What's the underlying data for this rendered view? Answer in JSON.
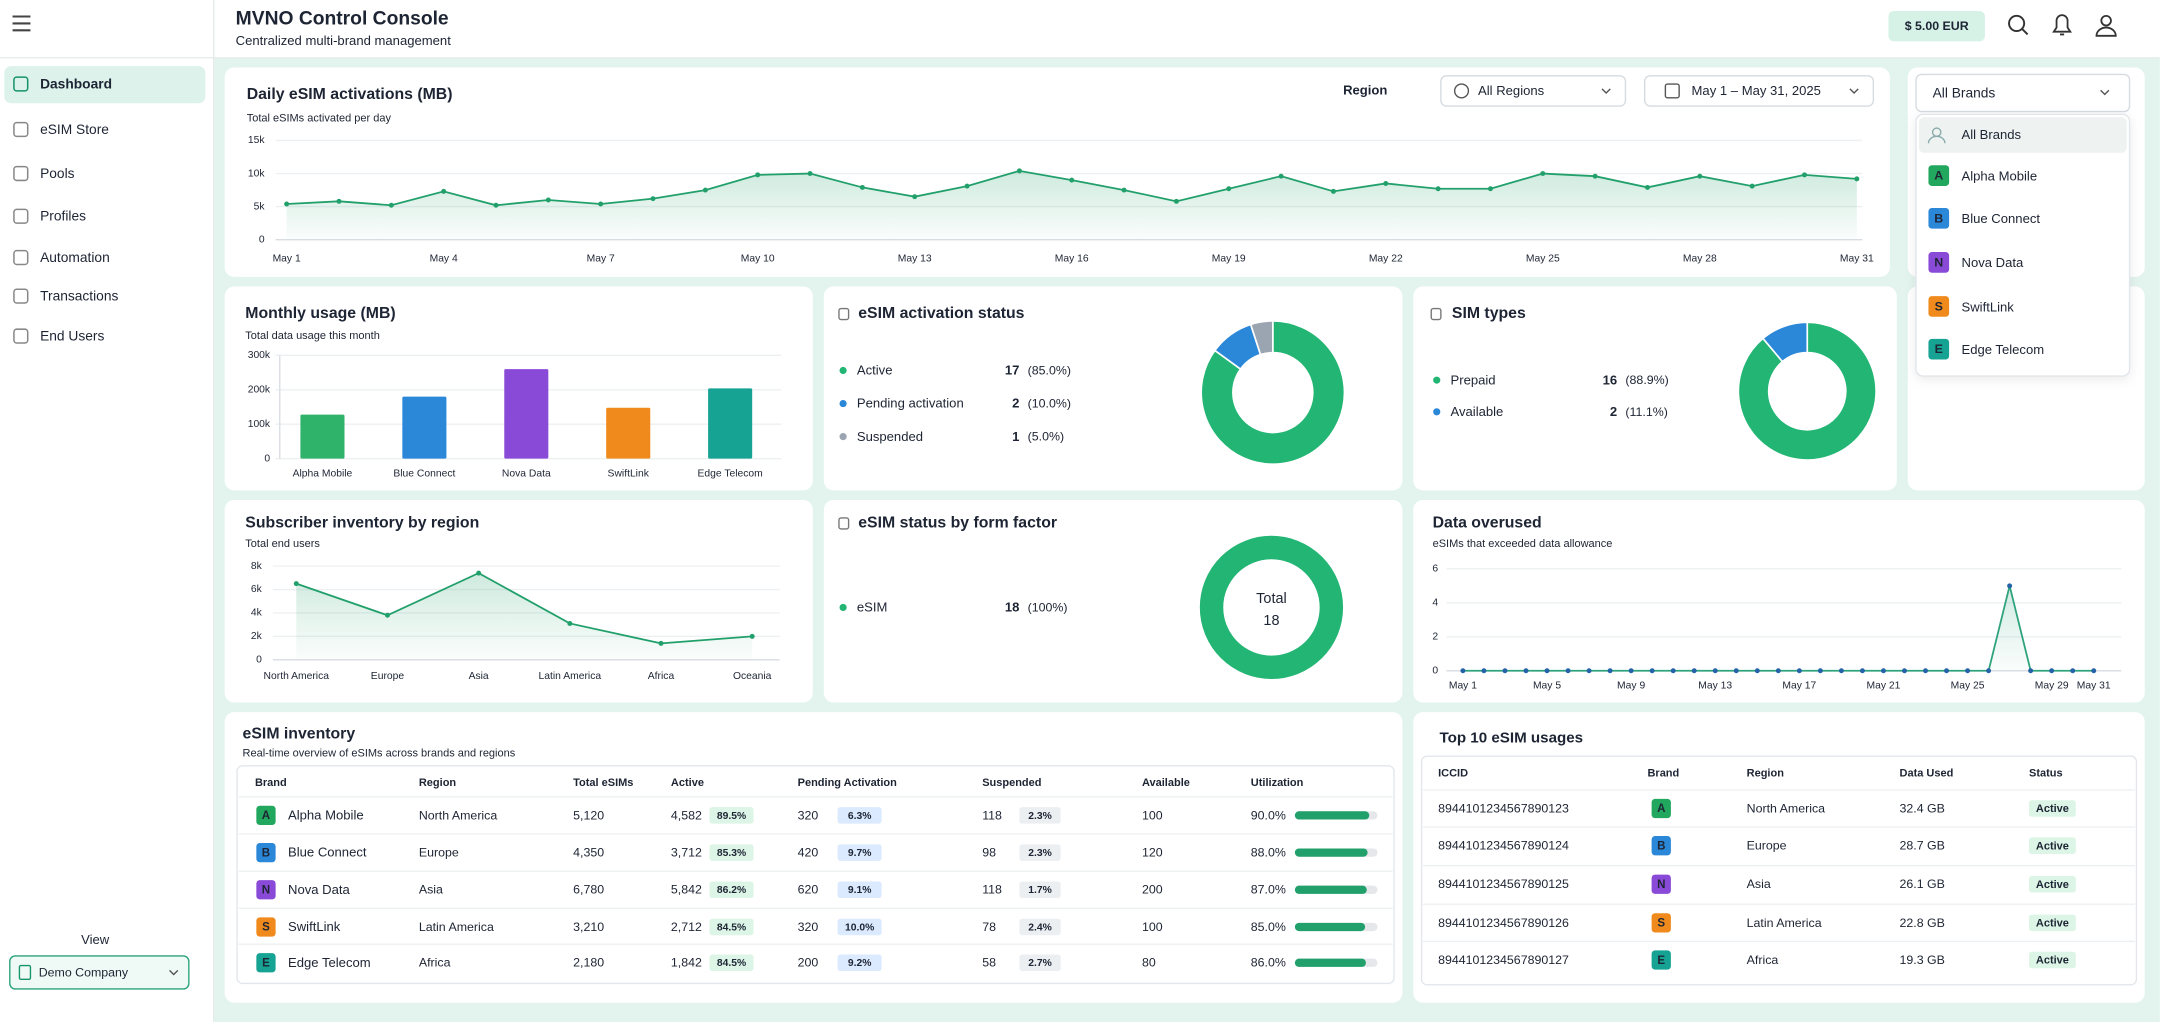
{
  "header": {
    "title": "MVNO Control Console",
    "subtitle": "Centralized multi-brand management",
    "balance": "$ 5.00 EUR"
  },
  "sidebar": {
    "items": [
      "Dashboard",
      "eSIM Store",
      "Pools",
      "Profiles",
      "Automation",
      "Transactions",
      "End Users"
    ],
    "active": 0,
    "view_label": "View",
    "view_value": "Demo Company"
  },
  "filters": {
    "region_label": "Region",
    "region_value": "All Regions",
    "date_range": "May 1 – May 31, 2025"
  },
  "brand_filter": {
    "value": "All Brands",
    "options": [
      {
        "name": "All Brands"
      },
      {
        "name": "Alpha Mobile",
        "initial": "A",
        "color": "#22a75e"
      },
      {
        "name": "Blue Connect",
        "initial": "B",
        "color": "#2b87d8"
      },
      {
        "name": "Nova Data",
        "initial": "N",
        "color": "#8a4ad8"
      },
      {
        "name": "SwiftLink",
        "initial": "S",
        "color": "#f08a1c"
      },
      {
        "name": "Edge Telecom",
        "initial": "E",
        "color": "#16a394"
      }
    ]
  },
  "chart_data": [
    {
      "type": "line",
      "title": "Daily eSIM activations (MB)",
      "subtitle": "Total eSIMs activated per day",
      "categories": [
        "May 1",
        null,
        null,
        "May 4",
        null,
        null,
        "May 7",
        null,
        null,
        "May 10",
        null,
        null,
        "May 13",
        null,
        null,
        "May 16",
        null,
        null,
        "May 19",
        null,
        null,
        "May 22",
        null,
        null,
        "May 25",
        null,
        null,
        "May 28",
        null,
        null,
        "May 31"
      ],
      "values": [
        5400,
        5800,
        5200,
        7300,
        5200,
        6000,
        5400,
        6200,
        7500,
        9800,
        10000,
        7900,
        6500,
        8100,
        10400,
        9000,
        7500,
        5800,
        7700,
        9600,
        7300,
        8500,
        7700,
        7700,
        10000,
        9600,
        7900,
        9600,
        8100,
        9800,
        9200
      ],
      "color": "#22a06b",
      "ylim": [
        0,
        15000
      ],
      "yticks": [
        0,
        {
          "value": 5000,
          "label": "5k"
        },
        {
          "value": 10000,
          "label": "10k"
        },
        {
          "value": 15000,
          "label": "15k"
        }
      ],
      "grid": true
    },
    {
      "type": "bar",
      "title": "Monthly usage (MB)",
      "subtitle": "Total data usage this month",
      "categories": [
        "Alpha Mobile",
        "Blue Connect",
        "Nova Data",
        "SwiftLink",
        "Edge Telecom"
      ],
      "values": [
        128000,
        180000,
        260000,
        148000,
        204000
      ],
      "colors": [
        "#2fb36b",
        "#2b87d8",
        "#8a4ad8",
        "#f08a1c",
        "#16a394"
      ],
      "ylim": [
        0,
        300000
      ],
      "yticks": [
        0,
        {
          "value": 100000,
          "label": "100k"
        },
        {
          "value": 200000,
          "label": "200k"
        },
        {
          "value": 300000,
          "label": "300k"
        }
      ],
      "grid": true
    },
    {
      "type": "pie",
      "title": "eSIM activation status",
      "categories": [
        "Active",
        "Pending activation",
        "Suspended"
      ],
      "values": [
        17,
        2,
        1
      ],
      "share_labels": [
        "(85.0%)",
        "(10.0%)",
        "(5.0%)"
      ],
      "colors": [
        "#22b573",
        "#2b87d8",
        "#9aa5b1"
      ]
    },
    {
      "type": "pie",
      "title": "SIM types",
      "categories": [
        "Prepaid",
        "Available"
      ],
      "values": [
        16,
        2
      ],
      "share_labels": [
        "(88.9%)",
        "(11.1%)"
      ],
      "colors": [
        "#22b573",
        "#2b87d8"
      ]
    },
    {
      "type": "line",
      "title": "Subscriber inventory by region",
      "subtitle": "Total end users",
      "categories": [
        "North America",
        "Europe",
        "Asia",
        "Latin America",
        "Africa",
        "Oceania"
      ],
      "values": [
        6500,
        3800,
        7400,
        3100,
        1400,
        2000
      ],
      "color": "#22a06b",
      "ylim": [
        0,
        8000
      ],
      "yticks": [
        0,
        {
          "value": 2000,
          "label": "2k"
        },
        {
          "value": 4000,
          "label": "4k"
        },
        {
          "value": 6000,
          "label": "6k"
        },
        {
          "value": 8000,
          "label": "8k"
        }
      ],
      "grid": true
    },
    {
      "type": "pie",
      "title": "eSIM status by form factor",
      "categories": [
        "eSIM"
      ],
      "values": [
        18
      ],
      "share_labels": [
        "(100%)"
      ],
      "colors": [
        "#22b573"
      ],
      "center_label": "Total",
      "center_value": 18
    },
    {
      "type": "line",
      "title": "Data overused",
      "subtitle": "eSIMs that exceeded data allowance",
      "categories": [
        "May 1",
        null,
        null,
        null,
        "May 5",
        null,
        null,
        null,
        "May 9",
        null,
        null,
        null,
        "May 13",
        null,
        null,
        null,
        "May 17",
        null,
        null,
        null,
        "May 21",
        null,
        null,
        null,
        "May 25",
        null,
        null,
        null,
        "May 29",
        null,
        "May 31"
      ],
      "values": [
        0,
        0,
        0,
        0,
        0,
        0,
        0,
        0,
        0,
        0,
        0,
        0,
        0,
        0,
        0,
        0,
        0,
        0,
        0,
        0,
        0,
        0,
        0,
        0,
        0,
        0,
        5,
        0,
        0,
        0,
        0
      ],
      "color": "#2fa37e",
      "marker_color": "#2563a8",
      "ylim": [
        0,
        6
      ],
      "yticks": [
        0,
        2,
        4,
        6
      ],
      "grid": true
    }
  ],
  "inventory_table": {
    "title": "eSIM inventory",
    "subtitle": "Real-time overview of eSIMs across brands and regions",
    "columns": [
      "Brand",
      "Region",
      "Total eSIMs",
      "Active",
      "Pending Activation",
      "Suspended",
      "Available",
      "Utilization"
    ],
    "rows": [
      {
        "brand": "Alpha Mobile",
        "initial": "A",
        "color": "#22a75e",
        "region": "North America",
        "total": "5,120",
        "active": "4,582",
        "active_pct": "89.5%",
        "pending": "320",
        "pending_pct": "6.3%",
        "suspended": "118",
        "suspended_pct": "2.3%",
        "available": "100",
        "utilization": {
          "value": 90.0,
          "label": "90.0%"
        }
      },
      {
        "brand": "Blue Connect",
        "initial": "B",
        "color": "#2b87d8",
        "region": "Europe",
        "total": "4,350",
        "active": "3,712",
        "active_pct": "85.3%",
        "pending": "420",
        "pending_pct": "9.7%",
        "suspended": "98",
        "suspended_pct": "2.3%",
        "available": "120",
        "utilization": {
          "value": 88.0,
          "label": "88.0%"
        }
      },
      {
        "brand": "Nova Data",
        "initial": "N",
        "color": "#8a4ad8",
        "region": "Asia",
        "total": "6,780",
        "active": "5,842",
        "active_pct": "86.2%",
        "pending": "620",
        "pending_pct": "9.1%",
        "suspended": "118",
        "suspended_pct": "1.7%",
        "available": "200",
        "utilization": {
          "value": 87.0,
          "label": "87.0%"
        }
      },
      {
        "brand": "SwiftLink",
        "initial": "S",
        "color": "#f08a1c",
        "region": "Latin America",
        "total": "3,210",
        "active": "2,712",
        "active_pct": "84.5%",
        "pending": "320",
        "pending_pct": "10.0%",
        "suspended": "78",
        "suspended_pct": "2.4%",
        "available": "100",
        "utilization": {
          "value": 85.0,
          "label": "85.0%"
        }
      },
      {
        "brand": "Edge Telecom",
        "initial": "E",
        "color": "#16a394",
        "region": "Africa",
        "total": "2,180",
        "active": "1,842",
        "active_pct": "84.5%",
        "pending": "200",
        "pending_pct": "9.2%",
        "suspended": "58",
        "suspended_pct": "2.7%",
        "available": "80",
        "utilization": {
          "value": 86.0,
          "label": "86.0%"
        }
      }
    ]
  },
  "top_usage_table": {
    "title": "Top 10 eSIM usages",
    "columns": [
      "ICCID",
      "Brand",
      "Region",
      "Data Used",
      "Status"
    ],
    "rows": [
      {
        "iccid": "8944101234567890123",
        "initial": "A",
        "color": "#22a75e",
        "region": "North America",
        "data_used": "32.4 GB",
        "status": "Active"
      },
      {
        "iccid": "8944101234567890124",
        "initial": "B",
        "color": "#2b87d8",
        "region": "Europe",
        "data_used": "28.7 GB",
        "status": "Active"
      },
      {
        "iccid": "8944101234567890125",
        "initial": "N",
        "color": "#8a4ad8",
        "region": "Asia",
        "data_used": "26.1 GB",
        "status": "Active"
      },
      {
        "iccid": "8944101234567890126",
        "initial": "S",
        "color": "#f08a1c",
        "region": "Latin America",
        "data_used": "22.8 GB",
        "status": "Active"
      },
      {
        "iccid": "8944101234567890127",
        "initial": "E",
        "color": "#16a394",
        "region": "Africa",
        "data_used": "19.3 GB",
        "status": "Active"
      }
    ]
  }
}
